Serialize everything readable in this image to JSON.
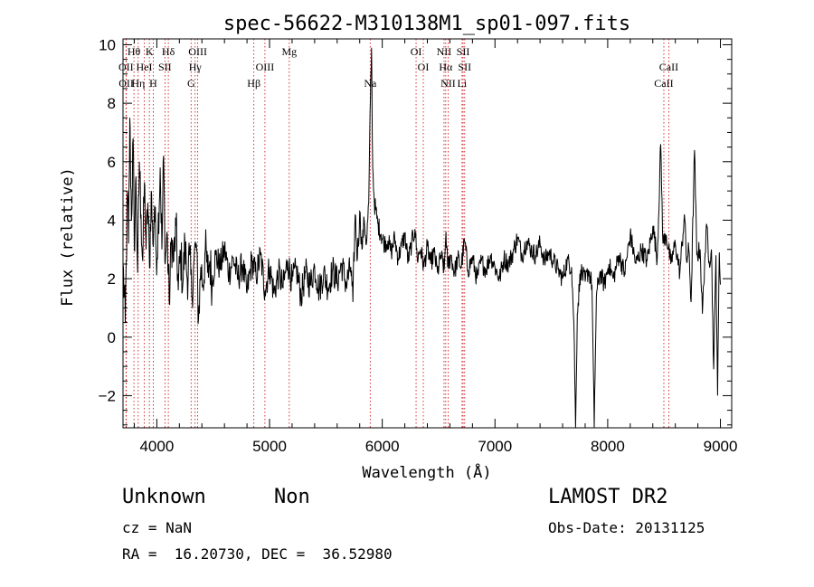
{
  "chart_data": {
    "type": "line",
    "title": "spec-56622-M310138M1_sp01-097.fits",
    "xlabel": "Wavelength (Å)",
    "ylabel": "Flux (relative)",
    "xlim": [
      3700,
      9100
    ],
    "ylim": [
      -3.1,
      10.2
    ],
    "xticks": [
      4000,
      5000,
      6000,
      7000,
      8000,
      9000
    ],
    "yticks": [
      -2,
      0,
      2,
      4,
      6,
      8,
      10
    ],
    "grid": false,
    "spectrum_anchors": [
      [
        3700,
        2.5
      ],
      [
        3720,
        0.5
      ],
      [
        3740,
        5.0
      ],
      [
        3750,
        3.2
      ],
      [
        3760,
        7.5
      ],
      [
        3775,
        4.0
      ],
      [
        3790,
        6.8
      ],
      [
        3800,
        3.0
      ],
      [
        3815,
        5.5
      ],
      [
        3830,
        2.2
      ],
      [
        3845,
        6.0
      ],
      [
        3860,
        4.2
      ],
      [
        3875,
        2.6
      ],
      [
        3890,
        5.3
      ],
      [
        3905,
        3.0
      ],
      [
        3920,
        4.6
      ],
      [
        3935,
        2.4
      ],
      [
        3950,
        5.0
      ],
      [
        3965,
        3.2
      ],
      [
        3980,
        4.5
      ],
      [
        3995,
        2.8
      ],
      [
        4010,
        3.5
      ],
      [
        4030,
        5.8
      ],
      [
        4045,
        3.0
      ],
      [
        4060,
        6.2
      ],
      [
        4075,
        2.5
      ],
      [
        4090,
        3.6
      ],
      [
        4110,
        1.2
      ],
      [
        4130,
        3.4
      ],
      [
        4150,
        2.6
      ],
      [
        4170,
        3.8
      ],
      [
        4190,
        1.6
      ],
      [
        4210,
        2.9
      ],
      [
        4230,
        1.8
      ],
      [
        4250,
        3.2
      ],
      [
        4270,
        2.0
      ],
      [
        4290,
        2.8
      ],
      [
        4310,
        1.4
      ],
      [
        4330,
        2.6
      ],
      [
        4350,
        3.2
      ],
      [
        4370,
        0.6
      ],
      [
        4390,
        2.4
      ],
      [
        4410,
        1.8
      ],
      [
        4430,
        3.0
      ],
      [
        4450,
        2.2
      ],
      [
        4470,
        2.6
      ],
      [
        4490,
        1.8
      ],
      [
        4520,
        2.8
      ],
      [
        4560,
        2.4
      ],
      [
        4600,
        3.0
      ],
      [
        4640,
        2.2
      ],
      [
        4680,
        2.7
      ],
      [
        4720,
        2.0
      ],
      [
        4760,
        2.5
      ],
      [
        4800,
        1.5
      ],
      [
        4840,
        2.6
      ],
      [
        4880,
        2.1
      ],
      [
        4920,
        2.8
      ],
      [
        4960,
        1.6
      ],
      [
        5000,
        2.4
      ],
      [
        5040,
        1.5
      ],
      [
        5080,
        2.2
      ],
      [
        5120,
        1.7
      ],
      [
        5160,
        2.6
      ],
      [
        5200,
        1.9
      ],
      [
        5240,
        2.3
      ],
      [
        5280,
        1.4
      ],
      [
        5320,
        2.2
      ],
      [
        5360,
        1.8
      ],
      [
        5400,
        2.4
      ],
      [
        5440,
        1.6
      ],
      [
        5480,
        2.2
      ],
      [
        5520,
        1.7
      ],
      [
        5560,
        2.3
      ],
      [
        5600,
        1.9
      ],
      [
        5640,
        2.5
      ],
      [
        5680,
        1.8
      ],
      [
        5720,
        2.4
      ],
      [
        5740,
        1.2
      ],
      [
        5760,
        4.2
      ],
      [
        5780,
        2.7
      ],
      [
        5800,
        4.3
      ],
      [
        5820,
        3.0
      ],
      [
        5840,
        4.0
      ],
      [
        5860,
        3.2
      ],
      [
        5880,
        4.6
      ],
      [
        5895,
        8.2
      ],
      [
        5905,
        9.9
      ],
      [
        5915,
        5.8
      ],
      [
        5930,
        4.6
      ],
      [
        5960,
        3.9
      ],
      [
        5990,
        3.5
      ],
      [
        6020,
        3.2
      ],
      [
        6050,
        3.3
      ],
      [
        6080,
        2.9
      ],
      [
        6110,
        3.4
      ],
      [
        6140,
        2.7
      ],
      [
        6170,
        3.1
      ],
      [
        6200,
        3.5
      ],
      [
        6230,
        2.6
      ],
      [
        6260,
        3.2
      ],
      [
        6290,
        3.7
      ],
      [
        6310,
        2.7
      ],
      [
        6340,
        3.0
      ],
      [
        6370,
        2.4
      ],
      [
        6400,
        3.1
      ],
      [
        6430,
        2.5
      ],
      [
        6460,
        2.9
      ],
      [
        6490,
        2.2
      ],
      [
        6520,
        2.8
      ],
      [
        6550,
        2.3
      ],
      [
        6565,
        3.6
      ],
      [
        6580,
        2.4
      ],
      [
        6610,
        2.8
      ],
      [
        6640,
        2.2
      ],
      [
        6670,
        2.7
      ],
      [
        6700,
        2.4
      ],
      [
        6730,
        3.3
      ],
      [
        6760,
        2.3
      ],
      [
        6800,
        2.7
      ],
      [
        6840,
        2.0
      ],
      [
        6880,
        2.6
      ],
      [
        6920,
        2.3
      ],
      [
        6960,
        2.8
      ],
      [
        7000,
        2.4
      ],
      [
        7040,
        2.0
      ],
      [
        7080,
        2.7
      ],
      [
        7120,
        2.5
      ],
      [
        7160,
        2.9
      ],
      [
        7200,
        3.4
      ],
      [
        7240,
        2.8
      ],
      [
        7280,
        3.3
      ],
      [
        7320,
        3.0
      ],
      [
        7360,
        2.8
      ],
      [
        7400,
        3.2
      ],
      [
        7440,
        2.6
      ],
      [
        7480,
        2.9
      ],
      [
        7520,
        2.6
      ],
      [
        7560,
        2.3
      ],
      [
        7600,
        2.0
      ],
      [
        7640,
        2.6
      ],
      [
        7680,
        2.4
      ],
      [
        7700,
        0.5
      ],
      [
        7715,
        -3.1
      ],
      [
        7730,
        0.8
      ],
      [
        7760,
        2.3
      ],
      [
        7800,
        1.9
      ],
      [
        7830,
        2.3
      ],
      [
        7860,
        1.8
      ],
      [
        7880,
        -3.1
      ],
      [
        7900,
        1.4
      ],
      [
        7930,
        2.2
      ],
      [
        7970,
        1.8
      ],
      [
        8010,
        2.5
      ],
      [
        8050,
        2.0
      ],
      [
        8100,
        2.8
      ],
      [
        8150,
        2.2
      ],
      [
        8200,
        3.5
      ],
      [
        8250,
        2.5
      ],
      [
        8300,
        3.0
      ],
      [
        8350,
        2.6
      ],
      [
        8400,
        3.8
      ],
      [
        8440,
        2.7
      ],
      [
        8470,
        6.6
      ],
      [
        8490,
        3.2
      ],
      [
        8520,
        3.5
      ],
      [
        8560,
        2.5
      ],
      [
        8600,
        3.2
      ],
      [
        8640,
        2.2
      ],
      [
        8680,
        4.2
      ],
      [
        8700,
        2.6
      ],
      [
        8720,
        3.0
      ],
      [
        8740,
        1.2
      ],
      [
        8770,
        6.4
      ],
      [
        8790,
        2.8
      ],
      [
        8820,
        3.0
      ],
      [
        8840,
        0.8
      ],
      [
        8860,
        2.6
      ],
      [
        8880,
        3.8
      ],
      [
        8900,
        2.6
      ],
      [
        8920,
        3.0
      ],
      [
        8940,
        -1.1
      ],
      [
        8960,
        2.8
      ],
      [
        8975,
        -2.0
      ],
      [
        8990,
        2.9
      ],
      [
        9000,
        1.8
      ]
    ],
    "annotations": [
      {
        "label": "Hθ",
        "x": 3797,
        "row": 1
      },
      {
        "label": "K",
        "x": 3934,
        "row": 1
      },
      {
        "label": "Hδ",
        "x": 4102,
        "row": 1
      },
      {
        "label": "OIII",
        "x": 4363,
        "row": 1
      },
      {
        "label": "Mg",
        "x": 5175,
        "row": 1
      },
      {
        "label": "OI",
        "x": 6300,
        "row": 1
      },
      {
        "label": "NII",
        "x": 6548,
        "row": 1
      },
      {
        "label": "SII",
        "x": 6717,
        "row": 1
      },
      {
        "label": "OII",
        "x": 3727,
        "row": 2
      },
      {
        "label": "HeI",
        "x": 3889,
        "row": 2
      },
      {
        "label": "SII",
        "x": 4072,
        "row": 2
      },
      {
        "label": "Hγ",
        "x": 4340,
        "row": 2
      },
      {
        "label": "OIII",
        "x": 4959,
        "row": 2
      },
      {
        "label": "OI",
        "x": 6364,
        "row": 2
      },
      {
        "label": "Hα",
        "x": 6563,
        "row": 2
      },
      {
        "label": "SII",
        "x": 6731,
        "row": 2
      },
      {
        "label": "CaII",
        "x": 8542,
        "row": 2
      },
      {
        "label": "OII",
        "x": 3729,
        "row": 3
      },
      {
        "label": "Hη",
        "x": 3835,
        "row": 3
      },
      {
        "label": "H",
        "x": 3968,
        "row": 3
      },
      {
        "label": "G",
        "x": 4304,
        "row": 3
      },
      {
        "label": "Hβ",
        "x": 4861,
        "row": 3
      },
      {
        "label": "Na",
        "x": 5893,
        "row": 3
      },
      {
        "label": "NII",
        "x": 6584,
        "row": 3
      },
      {
        "label": "Li",
        "x": 6708,
        "row": 3
      },
      {
        "label": "CaII",
        "x": 8498,
        "row": 3
      }
    ],
    "line_markers": [
      3727,
      3729,
      3797,
      3835,
      3889,
      3934,
      3968,
      4072,
      4102,
      4304,
      4340,
      4363,
      4861,
      4959,
      5175,
      5893,
      6300,
      6364,
      6548,
      6563,
      6584,
      6708,
      6717,
      6731,
      8498,
      8542
    ],
    "colors": {
      "spectrum": "#000000",
      "markers": "#cc0000",
      "axes": "#000000"
    }
  },
  "info": {
    "object_class": "Unknown",
    "subclass": "Non",
    "cz": "cz = NaN",
    "coords": "RA =  16.20730, DEC =  36.52980",
    "survey": "LAMOST DR2",
    "obs_date": "Obs-Date: 20131125"
  }
}
